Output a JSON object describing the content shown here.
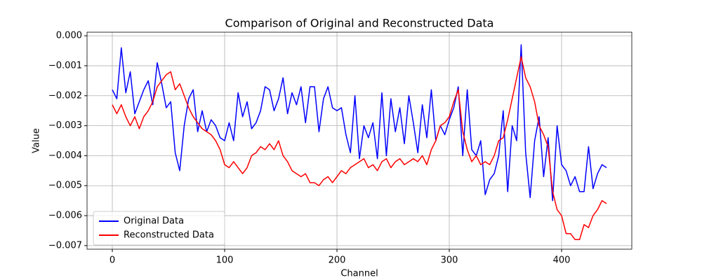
{
  "chart_data": {
    "type": "line",
    "title": "Comparison of Original and Reconstructed Data",
    "xlabel": "Channel",
    "ylabel": "Value",
    "x": [
      0,
      4,
      8,
      12,
      16,
      20,
      24,
      28,
      32,
      36,
      40,
      44,
      48,
      52,
      56,
      60,
      64,
      68,
      72,
      76,
      80,
      84,
      88,
      92,
      96,
      100,
      104,
      108,
      112,
      116,
      120,
      124,
      128,
      132,
      136,
      140,
      144,
      148,
      152,
      156,
      160,
      164,
      168,
      172,
      176,
      180,
      184,
      188,
      192,
      196,
      200,
      204,
      208,
      212,
      216,
      220,
      224,
      228,
      232,
      236,
      240,
      244,
      248,
      252,
      256,
      260,
      264,
      268,
      272,
      276,
      280,
      284,
      288,
      292,
      296,
      300,
      304,
      308,
      312,
      316,
      320,
      324,
      328,
      332,
      336,
      340,
      344,
      348,
      352,
      356,
      360,
      364,
      368,
      372,
      376,
      380,
      384,
      388,
      392,
      396,
      400,
      404,
      408,
      412,
      416,
      420,
      424,
      428,
      432,
      436,
      440
    ],
    "series": [
      {
        "name": "Original Data",
        "color": "#0000ff",
        "values": [
          -0.0018,
          -0.0021,
          -0.0004,
          -0.0019,
          -0.0012,
          -0.0026,
          -0.0022,
          -0.0018,
          -0.0015,
          -0.0023,
          -0.0009,
          -0.0016,
          -0.0024,
          -0.0022,
          -0.0039,
          -0.0045,
          -0.003,
          -0.0021,
          -0.0018,
          -0.0032,
          -0.0025,
          -0.0032,
          -0.0028,
          -0.003,
          -0.0034,
          -0.0035,
          -0.0029,
          -0.0035,
          -0.0019,
          -0.0027,
          -0.0022,
          -0.0031,
          -0.0029,
          -0.0025,
          -0.0017,
          -0.0018,
          -0.0025,
          -0.0021,
          -0.0014,
          -0.0026,
          -0.0019,
          -0.0023,
          -0.0017,
          -0.0029,
          -0.0017,
          -0.0017,
          -0.0032,
          -0.0021,
          -0.0017,
          -0.0024,
          -0.0025,
          -0.0024,
          -0.0033,
          -0.0039,
          -0.002,
          -0.0041,
          -0.003,
          -0.0034,
          -0.0029,
          -0.0041,
          -0.0019,
          -0.004,
          -0.0021,
          -0.0032,
          -0.0024,
          -0.0036,
          -0.002,
          -0.0029,
          -0.0039,
          -0.0023,
          -0.0034,
          -0.0018,
          -0.0035,
          -0.003,
          -0.0033,
          -0.0028,
          -0.0024,
          -0.0017,
          -0.004,
          -0.0018,
          -0.0038,
          -0.004,
          -0.0035,
          -0.0053,
          -0.0048,
          -0.0046,
          -0.004,
          -0.0025,
          -0.0052,
          -0.003,
          -0.0035,
          -0.0003,
          -0.0039,
          -0.0054,
          -0.0035,
          -0.0027,
          -0.0047,
          -0.0034,
          -0.0055,
          -0.003,
          -0.0043,
          -0.0045,
          -0.005,
          -0.0047,
          -0.0052,
          -0.0052,
          -0.0037,
          -0.0051,
          -0.0046,
          -0.0043,
          -0.0044
        ]
      },
      {
        "name": "Reconstructed Data",
        "color": "#ff0000",
        "values": [
          -0.0023,
          -0.0026,
          -0.0023,
          -0.0027,
          -0.003,
          -0.0027,
          -0.0031,
          -0.0027,
          -0.0025,
          -0.0022,
          -0.0017,
          -0.0015,
          -0.0013,
          -0.0012,
          -0.0018,
          -0.0016,
          -0.002,
          -0.0024,
          -0.0027,
          -0.0029,
          -0.0031,
          -0.0032,
          -0.0033,
          -0.0035,
          -0.0038,
          -0.0043,
          -0.0044,
          -0.0042,
          -0.0044,
          -0.0046,
          -0.0044,
          -0.004,
          -0.0039,
          -0.0037,
          -0.0038,
          -0.0036,
          -0.0038,
          -0.0035,
          -0.004,
          -0.0042,
          -0.0045,
          -0.0046,
          -0.0047,
          -0.0046,
          -0.0049,
          -0.0049,
          -0.005,
          -0.0048,
          -0.0047,
          -0.0049,
          -0.0047,
          -0.0045,
          -0.0046,
          -0.0044,
          -0.0043,
          -0.0042,
          -0.0041,
          -0.0044,
          -0.0043,
          -0.0045,
          -0.0042,
          -0.0041,
          -0.0044,
          -0.0042,
          -0.0041,
          -0.0043,
          -0.0042,
          -0.0041,
          -0.0042,
          -0.004,
          -0.0043,
          -0.0038,
          -0.0035,
          -0.003,
          -0.0029,
          -0.0027,
          -0.0022,
          -0.0018,
          -0.0032,
          -0.0038,
          -0.0042,
          -0.004,
          -0.0043,
          -0.0042,
          -0.0043,
          -0.004,
          -0.0035,
          -0.0034,
          -0.0028,
          -0.0021,
          -0.0014,
          -0.0007,
          -0.0014,
          -0.0017,
          -0.0022,
          -0.003,
          -0.0033,
          -0.0037,
          -0.0052,
          -0.0058,
          -0.006,
          -0.0066,
          -0.0066,
          -0.0068,
          -0.0068,
          -0.0063,
          -0.0064,
          -0.006,
          -0.0058,
          -0.0055,
          -0.0056
        ]
      }
    ],
    "xlim": [
      -22.5,
      462.5
    ],
    "xticks": [
      0,
      100,
      200,
      300,
      400
    ],
    "ylim": [
      -0.00712,
      0.00012
    ],
    "yticks": [
      {
        "value": -0.007,
        "label": "−0.007"
      },
      {
        "value": -0.006,
        "label": "−0.006"
      },
      {
        "value": -0.005,
        "label": "−0.005"
      },
      {
        "value": -0.004,
        "label": "−0.004"
      },
      {
        "value": -0.003,
        "label": "−0.003"
      },
      {
        "value": -0.002,
        "label": "−0.002"
      },
      {
        "value": -0.001,
        "label": "−0.001"
      },
      {
        "value": 0,
        "label": "0.000"
      }
    ],
    "grid": true,
    "legend": "lower left"
  }
}
